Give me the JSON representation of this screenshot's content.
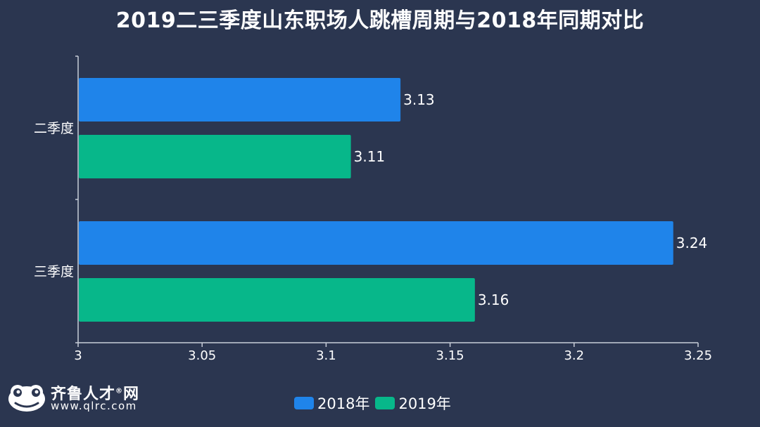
{
  "colors": {
    "background": "#2b3650",
    "series_2018": "#1f84ea",
    "series_2019": "#07b78a",
    "axis": "#c8cdd8"
  },
  "logo": {
    "name": "齐鲁人才",
    "mark": "®",
    "name_suffix": "网",
    "url": "www.qlrc.com",
    "icon": "frog-logo-icon"
  },
  "chart_data": {
    "type": "bar",
    "orientation": "horizontal",
    "title": "2019二三季度山东职场人跳槽周期与2018年同期对比",
    "categories": [
      "二季度",
      "三季度"
    ],
    "series": [
      {
        "name": "2018年",
        "values": [
          3.13,
          3.24
        ],
        "value_labels": [
          "3.13",
          "3.24"
        ]
      },
      {
        "name": "2019年",
        "values": [
          3.11,
          3.16
        ],
        "value_labels": [
          "3.11",
          "3.16"
        ]
      }
    ],
    "xlim": [
      3,
      3.25
    ],
    "xticks": [
      3,
      3.05,
      3.1,
      3.15,
      3.2,
      3.25
    ],
    "xtick_labels": [
      "3",
      "3.05",
      "3.1",
      "3.15",
      "3.2",
      "3.25"
    ],
    "grid": false,
    "legend_position": "bottom"
  }
}
